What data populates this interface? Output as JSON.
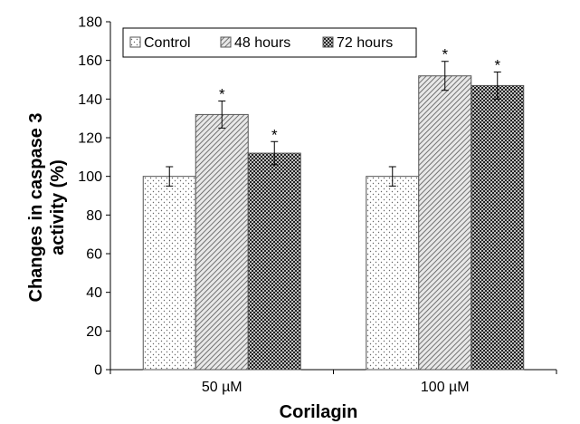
{
  "chart_data": {
    "type": "bar",
    "categories": [
      "50 µM",
      "100 µM"
    ],
    "series": [
      {
        "name": "Control",
        "values": [
          100,
          100
        ],
        "errors": [
          5,
          5
        ],
        "significance": [
          "",
          ""
        ],
        "pattern": "dots"
      },
      {
        "name": "48 hours",
        "values": [
          132,
          152
        ],
        "errors": [
          7,
          7.5
        ],
        "significance": [
          "*",
          "*"
        ],
        "pattern": "diagonal"
      },
      {
        "name": "72 hours",
        "values": [
          112,
          147
        ],
        "errors": [
          6,
          7
        ],
        "significance": [
          "*",
          "*"
        ],
        "pattern": "checker"
      }
    ],
    "xlabel": "Corilagin",
    "ylabel": "Changes in caspase 3 activity (%)",
    "ylabel_lines": [
      "Changes in caspase 3",
      "activity (%)"
    ],
    "ylim": [
      0,
      180
    ],
    "yticks": [
      0,
      20,
      40,
      60,
      80,
      100,
      120,
      140,
      160,
      180
    ],
    "grid": false,
    "legend": "top-left"
  }
}
